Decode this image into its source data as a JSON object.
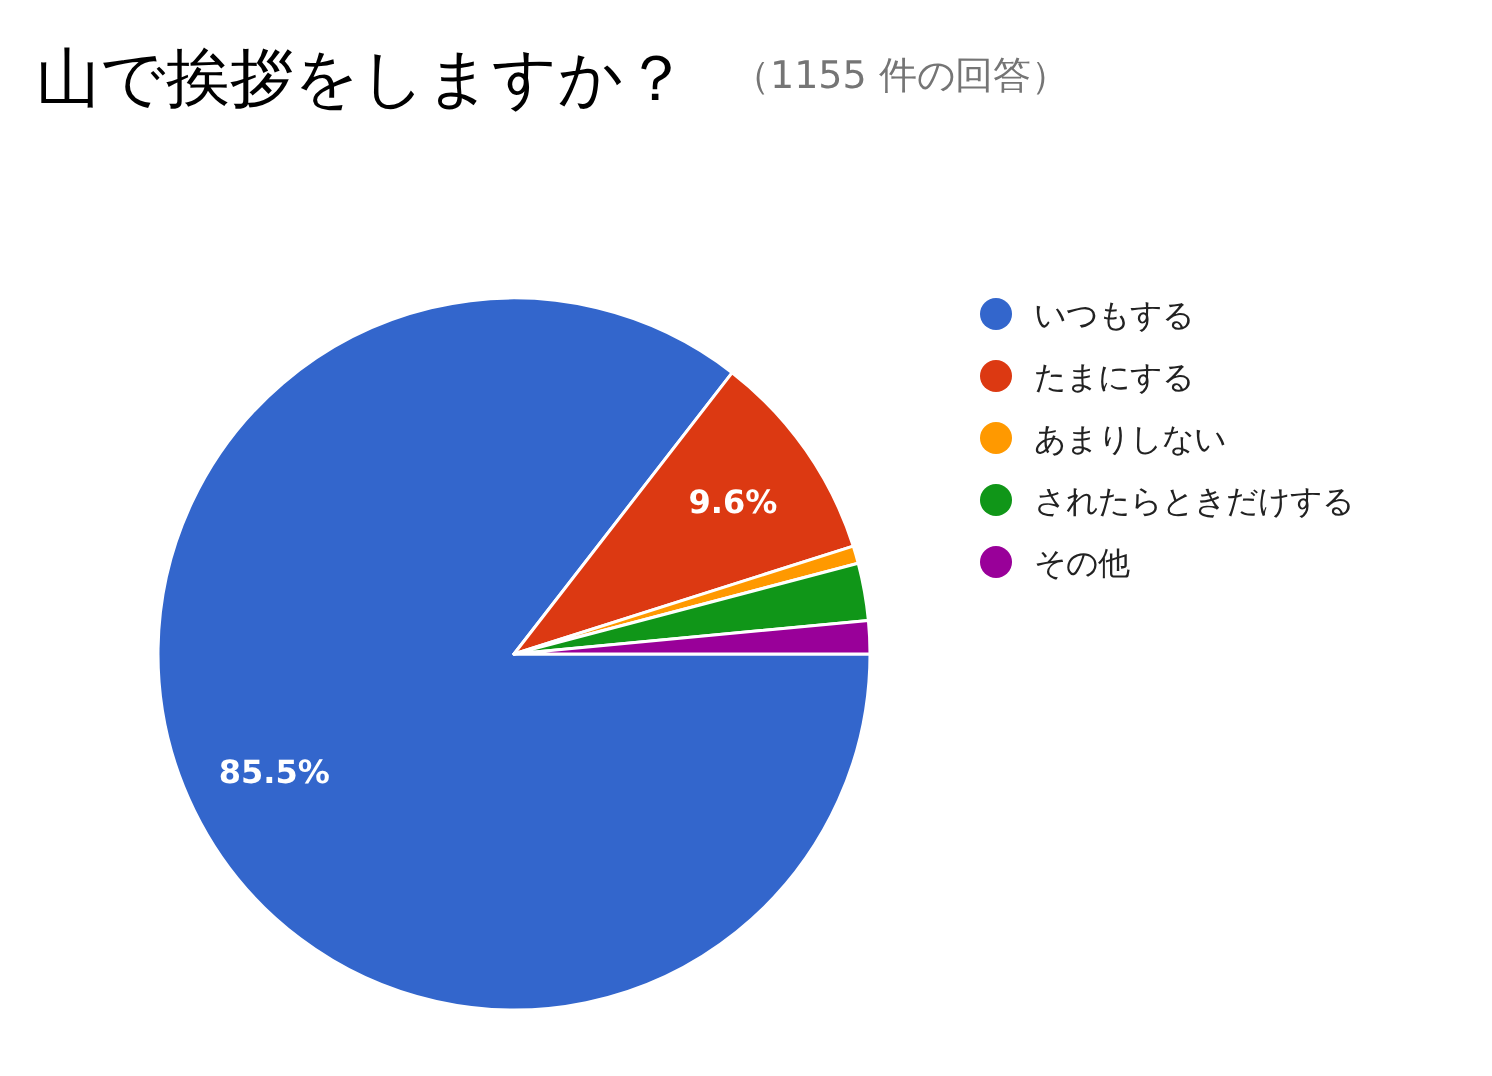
{
  "chart_data": {
    "type": "pie",
    "title": "山で挨拶をしますか？",
    "subtitle": "（1155 件の回答）",
    "categories": [
      "いつもする",
      "たまにする",
      "あまりしない",
      "されたらときだけする",
      "その他"
    ],
    "values": [
      85.5,
      9.6,
      0.8,
      2.6,
      1.5
    ],
    "colors": [
      "#3366cc",
      "#dc3912",
      "#ff9900",
      "#109618",
      "#990099"
    ],
    "value_labels": [
      "85.5%",
      "9.6%",
      null,
      null,
      null
    ],
    "legend": "right"
  }
}
